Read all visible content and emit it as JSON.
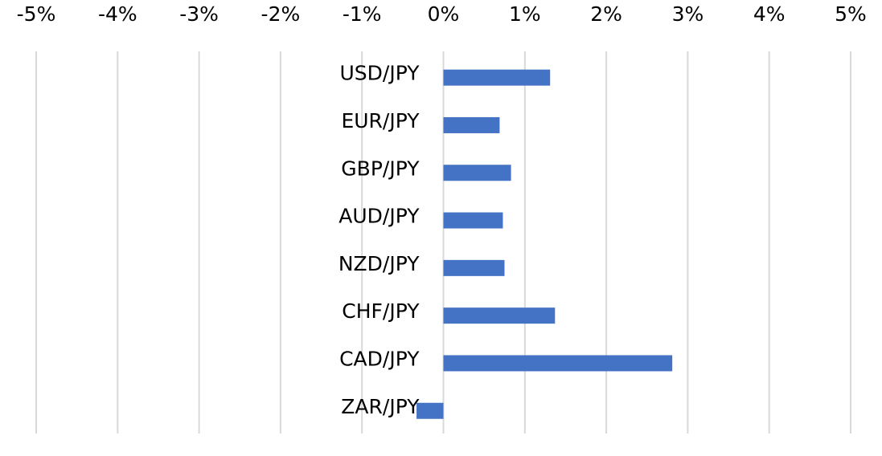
{
  "chart_data": {
    "type": "bar",
    "orientation": "horizontal",
    "title": "",
    "xlabel": "",
    "ylabel": "",
    "xlim": [
      -5,
      5
    ],
    "x_ticks": [
      "-5%",
      "-4%",
      "-3%",
      "-2%",
      "-1%",
      "0%",
      "1%",
      "2%",
      "3%",
      "4%",
      "5%"
    ],
    "x_axis_position": "top",
    "grid": true,
    "legend": "none",
    "bar_color": "#4472c4",
    "grid_color": "#d9d9d9",
    "categories": [
      "USD/JPY",
      "EUR/JPY",
      "GBP/JPY",
      "AUD/JPY",
      "NZD/JPY",
      "CHF/JPY",
      "CAD/JPY",
      "ZAR/JPY"
    ],
    "values": [
      1.31,
      0.69,
      0.83,
      0.73,
      0.75,
      1.37,
      2.81,
      -0.33
    ],
    "units": "%"
  }
}
